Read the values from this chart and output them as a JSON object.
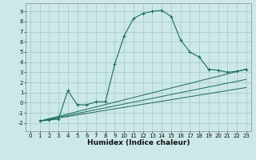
{
  "xlabel": "Humidex (Indice chaleur)",
  "xlabel_fontsize": 6.5,
  "xlabel_bold": true,
  "bg_color": "#cce8e8",
  "grid_color": "#aacccc",
  "line_color": "#1a6b5a",
  "xlim": [
    -0.5,
    23.5
  ],
  "ylim": [
    -2.8,
    9.8
  ],
  "xticks": [
    0,
    1,
    2,
    3,
    4,
    5,
    6,
    7,
    8,
    9,
    10,
    11,
    12,
    13,
    14,
    15,
    16,
    17,
    18,
    19,
    20,
    21,
    22,
    23
  ],
  "yticks": [
    -2,
    -1,
    0,
    1,
    2,
    3,
    4,
    5,
    6,
    7,
    8,
    9
  ],
  "tick_fontsize": 5.0,
  "line1_x": [
    1,
    2,
    3,
    4,
    5,
    6,
    7,
    8,
    9,
    10,
    11,
    12,
    13,
    14,
    15,
    16,
    17,
    18,
    19,
    20,
    21,
    22,
    23
  ],
  "line1_y": [
    -1.8,
    -1.7,
    -1.6,
    1.2,
    -0.2,
    -0.2,
    0.1,
    0.1,
    3.8,
    6.6,
    8.3,
    8.8,
    9.0,
    9.1,
    8.5,
    6.2,
    5.0,
    4.5,
    3.3,
    3.2,
    3.0,
    3.1,
    3.3
  ],
  "line2_x": [
    1,
    23
  ],
  "line2_y": [
    -1.8,
    3.3
  ],
  "line3_x": [
    1,
    23
  ],
  "line3_y": [
    -1.8,
    2.3
  ],
  "line4_x": [
    1,
    23
  ],
  "line4_y": [
    -1.8,
    1.5
  ]
}
